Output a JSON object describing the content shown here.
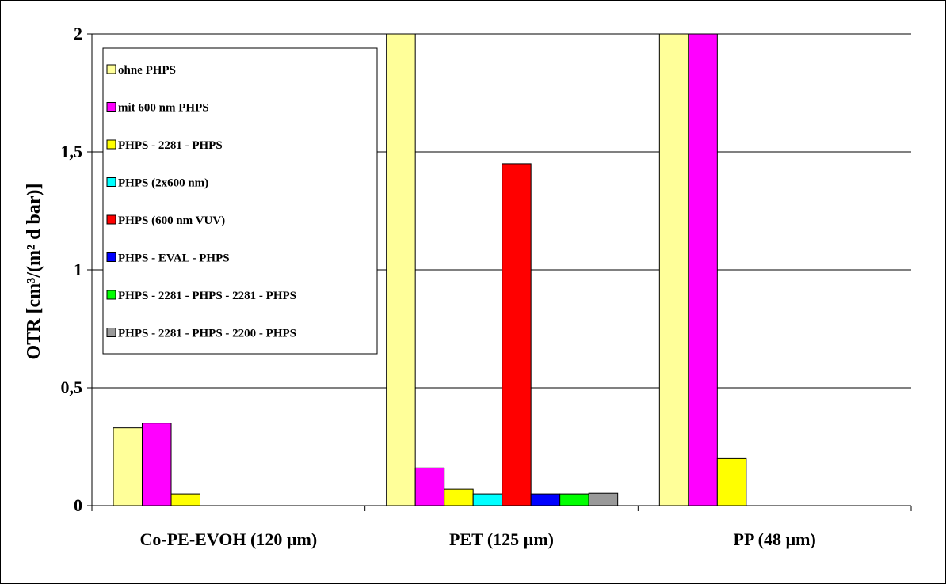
{
  "chart_data": {
    "type": "bar",
    "title": "",
    "xlabel": "",
    "ylabel": "OTR [cm³/(m² d bar)]",
    "ylim": [
      0,
      2
    ],
    "yticks": [
      {
        "value": 0,
        "label": "0"
      },
      {
        "value": 0.5,
        "label": "0,5"
      },
      {
        "value": 1,
        "label": "1"
      },
      {
        "value": 1.5,
        "label": "1,5"
      },
      {
        "value": 2,
        "label": "2"
      }
    ],
    "grid": true,
    "legend_position": "top-left",
    "categories": [
      "Co-PE-EVOH (120 µm)",
      "PET (125 µm)",
      "PP (48 µm)"
    ],
    "series": [
      {
        "name": "ohne PHPS",
        "color": "#ffff99",
        "values": [
          0.33,
          2.0,
          2.0
        ]
      },
      {
        "name": "mit 600 nm PHPS",
        "color": "#ff00ff",
        "values": [
          0.35,
          0.16,
          2.0
        ]
      },
      {
        "name": "PHPS - 2281 - PHPS",
        "color": "#ffff00",
        "values": [
          0.05,
          0.07,
          0.2
        ]
      },
      {
        "name": "PHPS (2x600 nm)",
        "color": "#00ffff",
        "values": [
          null,
          0.05,
          null
        ]
      },
      {
        "name": "PHPS (600 nm VUV)",
        "color": "#ff0000",
        "values": [
          null,
          1.45,
          null
        ]
      },
      {
        "name": "PHPS - EVAL - PHPS",
        "color": "#0000ff",
        "values": [
          null,
          0.05,
          null
        ]
      },
      {
        "name": "PHPS - 2281 - PHPS - 2281 - PHPS",
        "color": "#00ff00",
        "values": [
          null,
          0.05,
          null
        ]
      },
      {
        "name": "PHPS - 2281 - PHPS - 2200 - PHPS",
        "color": "#999999",
        "values": [
          null,
          0.053,
          null
        ]
      }
    ]
  }
}
